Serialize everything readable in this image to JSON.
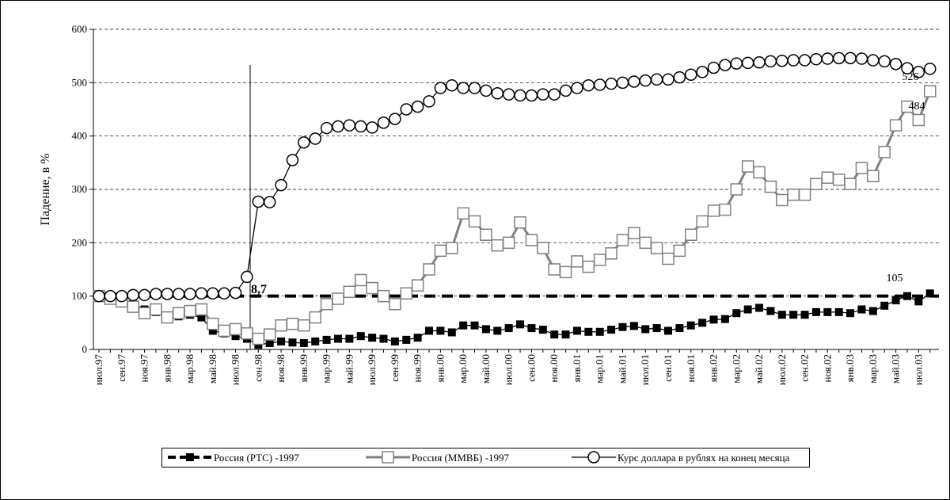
{
  "chart_data": {
    "type": "line",
    "ylabel": "Падение, в %",
    "categories": [
      "июл.97",
      null,
      "сен.97",
      null,
      "ноя.97",
      null,
      "янв.98",
      null,
      "мар.98",
      null,
      "май.98",
      null,
      "июл.98",
      null,
      "сен.98",
      null,
      "ноя.98",
      null,
      "янв.99",
      null,
      "мар.99",
      null,
      "май.99",
      null,
      "июл.99",
      null,
      "сен.99",
      null,
      "ноя.99",
      null,
      "янв.00",
      null,
      "мар.00",
      null,
      "май.00",
      null,
      "июл.00",
      null,
      "сен.00",
      null,
      "ноя.00",
      null,
      "янв.01",
      null,
      "мар.01",
      null,
      "май.01",
      null,
      "июл.01",
      null,
      "сен.01",
      null,
      "ноя.01",
      null,
      "янв.02",
      null,
      "мар.02",
      null,
      "май.02",
      null,
      "июл.02",
      null,
      "сен.02",
      null,
      "ноя.02",
      null,
      "янв.03",
      null,
      "мар.03",
      null,
      "май.03",
      null,
      "июл.03",
      null
    ],
    "series": [
      {
        "name": "Россия (РТС) -1997",
        "color": "#000000",
        "marker": "square-filled",
        "values": [
          100,
          95,
          90,
          85,
          75,
          70,
          60,
          62,
          65,
          60,
          35,
          30,
          25,
          20,
          8.7,
          12,
          15,
          13,
          12,
          15,
          18,
          20,
          20,
          25,
          22,
          20,
          15,
          18,
          22,
          35,
          35,
          32,
          45,
          45,
          38,
          35,
          40,
          47,
          40,
          37,
          28,
          28,
          35,
          33,
          33,
          37,
          42,
          44,
          38,
          40,
          35,
          40,
          45,
          50,
          56,
          57,
          68,
          75,
          78,
          72,
          65,
          65,
          65,
          70,
          70,
          70,
          68,
          75,
          72,
          82,
          92,
          100,
          90,
          105
        ]
      },
      {
        "name": "Россия (ММВБ) -1997",
        "color": "#808080",
        "marker": "square-open",
        "values": [
          100,
          95,
          90,
          80,
          68,
          75,
          60,
          68,
          72,
          75,
          48,
          35,
          38,
          30,
          20,
          28,
          45,
          48,
          45,
          60,
          85,
          95,
          108,
          130,
          115,
          100,
          85,
          105,
          120,
          150,
          185,
          190,
          255,
          240,
          215,
          195,
          200,
          238,
          205,
          190,
          150,
          145,
          165,
          155,
          168,
          180,
          205,
          218,
          200,
          190,
          170,
          185,
          215,
          240,
          260,
          262,
          300,
          343,
          332,
          305,
          280,
          290,
          290,
          310,
          322,
          318,
          310,
          340,
          325,
          370,
          420,
          455,
          430,
          484
        ]
      },
      {
        "name": "Курс доллара в рублях на конец месяца",
        "color": "#000000",
        "marker": "circle-open",
        "values": [
          100,
          100,
          100,
          102,
          102,
          104,
          104,
          104,
          104,
          105,
          105,
          105,
          106,
          136,
          277,
          276,
          308,
          355,
          388,
          395,
          415,
          418,
          420,
          418,
          416,
          425,
          432,
          450,
          455,
          465,
          490,
          495,
          490,
          490,
          485,
          480,
          478,
          476,
          476,
          478,
          478,
          485,
          490,
          495,
          496,
          498,
          500,
          502,
          504,
          506,
          506,
          510,
          515,
          520,
          528,
          533,
          536,
          537,
          538,
          540,
          541,
          542,
          542,
          544,
          545,
          546,
          546,
          545,
          542,
          540,
          535,
          527,
          520,
          526
        ]
      }
    ],
    "annotations": [
      "8,7",
      "526",
      "484",
      "105"
    ],
    "ylim": [
      0,
      600
    ],
    "yticks": [
      0,
      100,
      200,
      300,
      400,
      500,
      600
    ],
    "grid": true,
    "legend": "bottom"
  }
}
